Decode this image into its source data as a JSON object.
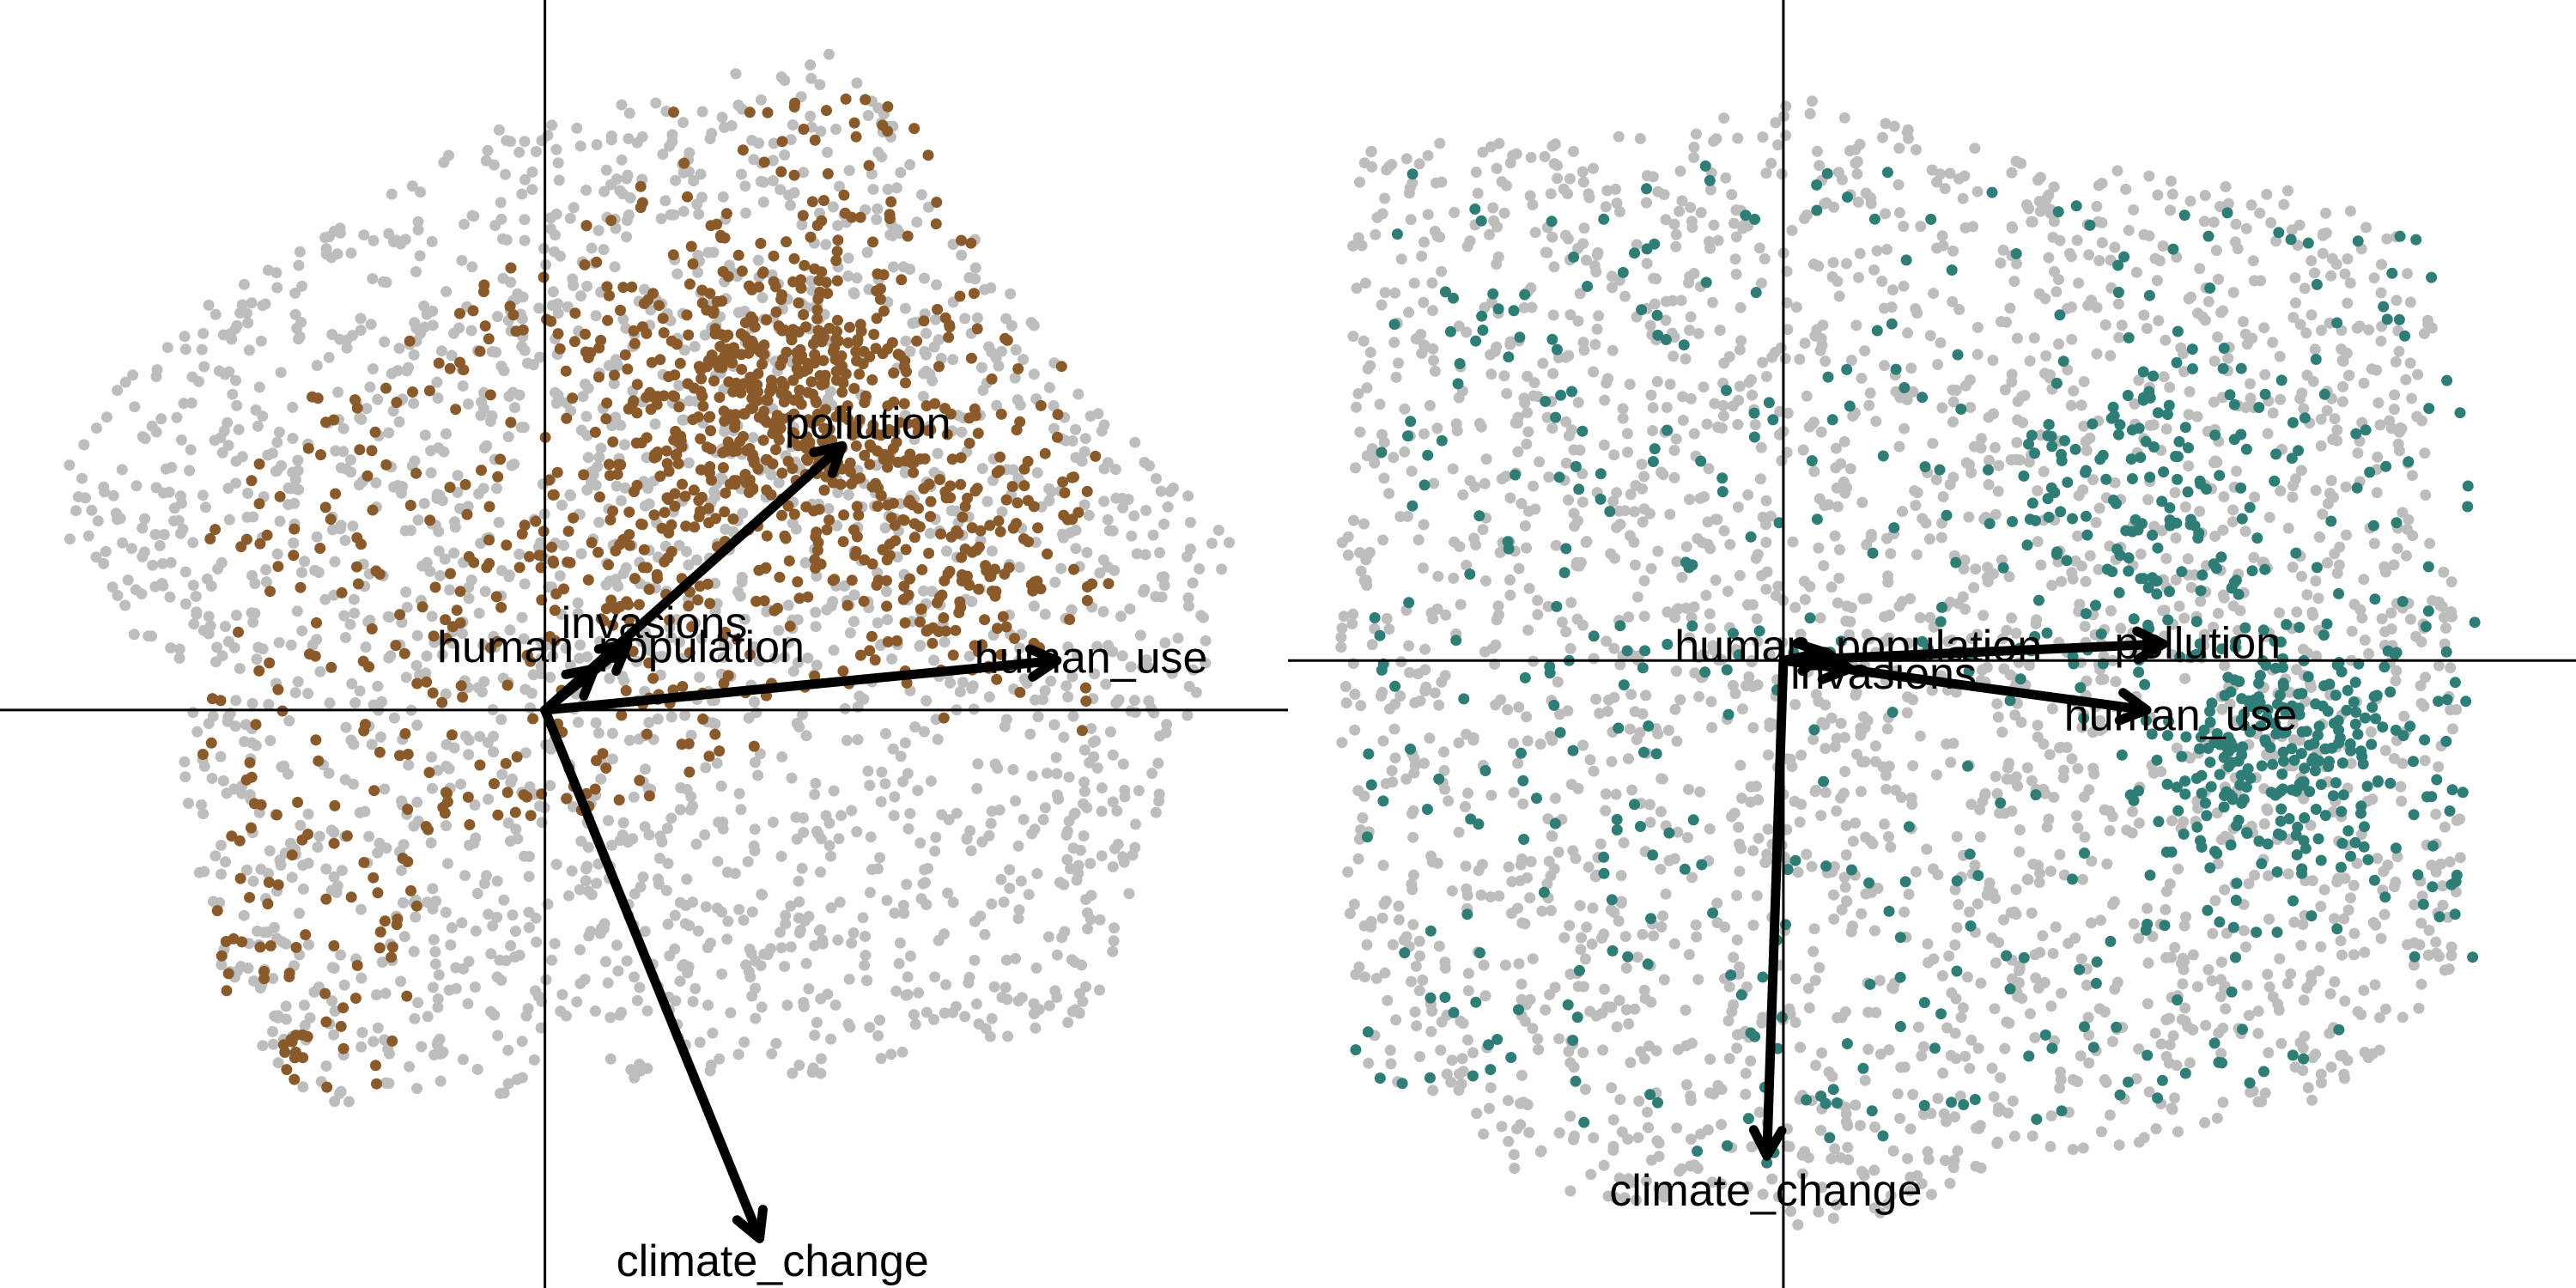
{
  "chart_data": [
    {
      "type": "scatter",
      "title": "",
      "xlabel": "",
      "ylabel": "",
      "grid": false,
      "axes_lines": "origin-crosshair",
      "xlim": [
        -3.3,
        4.5
      ],
      "ylim": [
        -3.5,
        4.3
      ],
      "colors": {
        "background_points": "#bdbdbd",
        "highlight_points": "#8b5a2b",
        "arrows": "#000000",
        "axis_lines": "#000000"
      },
      "cloud": {
        "name": "",
        "shape": [
          [
            -2.9,
            1.6
          ],
          [
            -2.3,
            2.3
          ],
          [
            -0.2,
            3.6
          ],
          [
            1.8,
            4.0
          ],
          [
            3.2,
            2.0
          ],
          [
            4.2,
            1.0
          ],
          [
            3.8,
            -0.5
          ],
          [
            3.3,
            -1.9
          ],
          [
            1.8,
            -2.2
          ],
          [
            0.2,
            -2.3
          ],
          [
            -1.5,
            -2.4
          ],
          [
            -2.0,
            -1.6
          ],
          [
            -2.3,
            0.1
          ],
          [
            -2.9,
            1.0
          ]
        ],
        "count": 2200
      },
      "highlight": {
        "name": "",
        "shape": [
          [
            -2.0,
            1.5
          ],
          [
            -1.0,
            2.2
          ],
          [
            0.6,
            3.3
          ],
          [
            2.0,
            4.0
          ],
          [
            3.0,
            2.2
          ],
          [
            3.3,
            1.2
          ],
          [
            2.0,
            0.2
          ],
          [
            0.5,
            -0.6
          ],
          [
            -0.5,
            -0.8
          ],
          [
            -1.5,
            -2.3
          ],
          [
            -2.0,
            -1.5
          ],
          [
            -2.1,
            0.0
          ]
        ],
        "dense": [
          [
            1.4,
            1.9,
            420
          ],
          [
            2.5,
            1.0,
            160
          ],
          [
            -1.5,
            -1.8,
            40
          ],
          [
            0.5,
            0.8,
            60
          ]
        ],
        "count": 520
      },
      "loadings": [
        {
          "label": "pollution",
          "x": 1.8,
          "y": 1.6
        },
        {
          "label": "invasions",
          "x": 0.5,
          "y": 0.4
        },
        {
          "label": "human_population",
          "x": 0.3,
          "y": 0.25
        },
        {
          "label": "human_use",
          "x": 3.1,
          "y": 0.3
        },
        {
          "label": "climate_change",
          "x": 1.3,
          "y": -3.2
        }
      ]
    },
    {
      "type": "scatter",
      "title": "",
      "xlabel": "",
      "ylabel": "",
      "grid": false,
      "axes_lines": "origin-crosshair",
      "xlim": [
        -3.0,
        4.8
      ],
      "ylim": [
        -3.8,
        4.0
      ],
      "colors": {
        "background_points": "#bdbdbd",
        "highlight_points": "#2e7d76",
        "arrows": "#000000",
        "axis_lines": "#000000"
      },
      "cloud": {
        "name": "",
        "shape": [
          [
            -2.6,
            3.1
          ],
          [
            -1.0,
            3.2
          ],
          [
            0.2,
            3.4
          ],
          [
            1.5,
            3.0
          ],
          [
            3.1,
            2.9
          ],
          [
            3.9,
            2.5
          ],
          [
            4.1,
            0.0
          ],
          [
            4.1,
            -1.8
          ],
          [
            3.5,
            -2.6
          ],
          [
            1.0,
            -3.2
          ],
          [
            0.5,
            -3.5
          ],
          [
            -1.5,
            -3.2
          ],
          [
            -2.6,
            -2.4
          ],
          [
            -2.7,
            0.0
          ]
        ],
        "count": 2600
      },
      "highlight": {
        "name": "",
        "shape": [
          [
            -2.4,
            3.0
          ],
          [
            -1.0,
            3.0
          ],
          [
            0.5,
            3.0
          ],
          [
            2.0,
            2.9
          ],
          [
            3.8,
            2.7
          ],
          [
            4.2,
            1.5
          ],
          [
            4.2,
            -2.2
          ],
          [
            3.5,
            -2.5
          ],
          [
            1.5,
            -2.8
          ],
          [
            0.0,
            -3.1
          ],
          [
            -2.6,
            -2.5
          ],
          [
            -2.5,
            0.0
          ]
        ],
        "dense": [
          [
            3.0,
            -0.6,
            250
          ],
          [
            2.2,
            1.0,
            120
          ]
        ],
        "count": 470
      },
      "loadings": [
        {
          "label": "human_population",
          "x": 0.25,
          "y": 0.05
        },
        {
          "label": "pollution",
          "x": 2.3,
          "y": 0.1
        },
        {
          "label": "invasions",
          "x": 0.4,
          "y": -0.05
        },
        {
          "label": "human_use",
          "x": 2.2,
          "y": -0.3
        },
        {
          "label": "climate_change",
          "x": -0.1,
          "y": -3.0
        }
      ]
    }
  ]
}
